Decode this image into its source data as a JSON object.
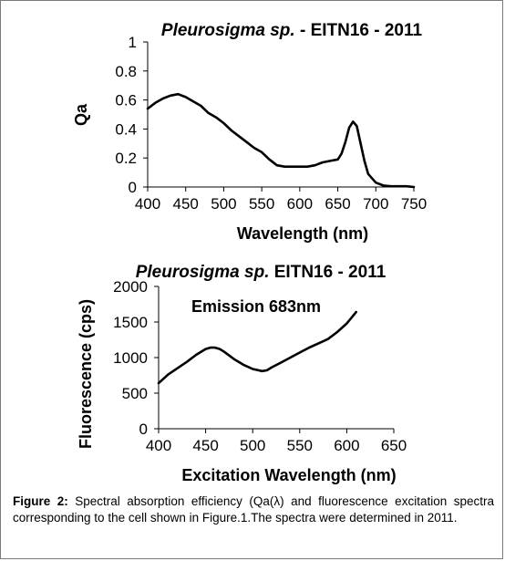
{
  "chart_data": [
    {
      "type": "line",
      "title_italic": "Pleurosigma sp.",
      "title_rest": " - EITN16 - 2011",
      "xlabel": "Wavelength (nm)",
      "ylabel": "Qa",
      "xlim": [
        400,
        750
      ],
      "ylim": [
        0,
        1
      ],
      "xticks": [
        400,
        450,
        500,
        550,
        600,
        650,
        700,
        750
      ],
      "yticks": [
        0,
        0.2,
        0.4,
        0.6,
        0.8,
        1
      ],
      "ytick_labels": [
        "0",
        "0.2",
        "0.4",
        "0.6",
        "0.8",
        "1"
      ],
      "grid": false,
      "series": [
        {
          "x": [
            400,
            410,
            420,
            430,
            440,
            450,
            460,
            470,
            480,
            490,
            500,
            510,
            520,
            530,
            540,
            550,
            560,
            570,
            580,
            590,
            600,
            610,
            620,
            630,
            640,
            650,
            655,
            660,
            665,
            670,
            675,
            680,
            685,
            690,
            700,
            710,
            720,
            730,
            740,
            750
          ],
          "y": [
            0.54,
            0.58,
            0.61,
            0.63,
            0.64,
            0.62,
            0.59,
            0.56,
            0.51,
            0.48,
            0.44,
            0.39,
            0.35,
            0.31,
            0.27,
            0.24,
            0.19,
            0.15,
            0.14,
            0.14,
            0.14,
            0.14,
            0.15,
            0.17,
            0.18,
            0.19,
            0.23,
            0.31,
            0.41,
            0.45,
            0.42,
            0.3,
            0.18,
            0.09,
            0.03,
            0.01,
            0.005,
            0.005,
            0.005,
            0.0
          ]
        }
      ]
    },
    {
      "type": "line",
      "title_italic": "Pleurosigma sp.",
      "title_rest": " EITN16 - 2011",
      "annotation": "Emission 683nm",
      "xlabel": "Excitation Wavelength (nm)",
      "ylabel": "Fluorescence (cps)",
      "xlim": [
        400,
        650
      ],
      "ylim": [
        0,
        2000
      ],
      "xticks": [
        400,
        450,
        500,
        550,
        600,
        650
      ],
      "yticks": [
        0,
        500,
        1000,
        1500,
        2000
      ],
      "grid": false,
      "series": [
        {
          "x": [
            400,
            410,
            420,
            430,
            440,
            450,
            455,
            460,
            465,
            470,
            480,
            490,
            500,
            510,
            515,
            520,
            530,
            540,
            550,
            560,
            570,
            580,
            590,
            600,
            610
          ],
          "y": [
            640,
            760,
            850,
            940,
            1040,
            1120,
            1140,
            1140,
            1120,
            1080,
            980,
            900,
            840,
            810,
            820,
            860,
            930,
            1000,
            1070,
            1140,
            1200,
            1260,
            1360,
            1480,
            1640
          ]
        }
      ]
    }
  ],
  "caption": {
    "label": "Figure 2:",
    "text": " Spectral absorption efficiency (Qa(λ) and fluorescence excitation spectra corresponding to the cell shown in Figure.1.The spectra were determined in 2011."
  }
}
